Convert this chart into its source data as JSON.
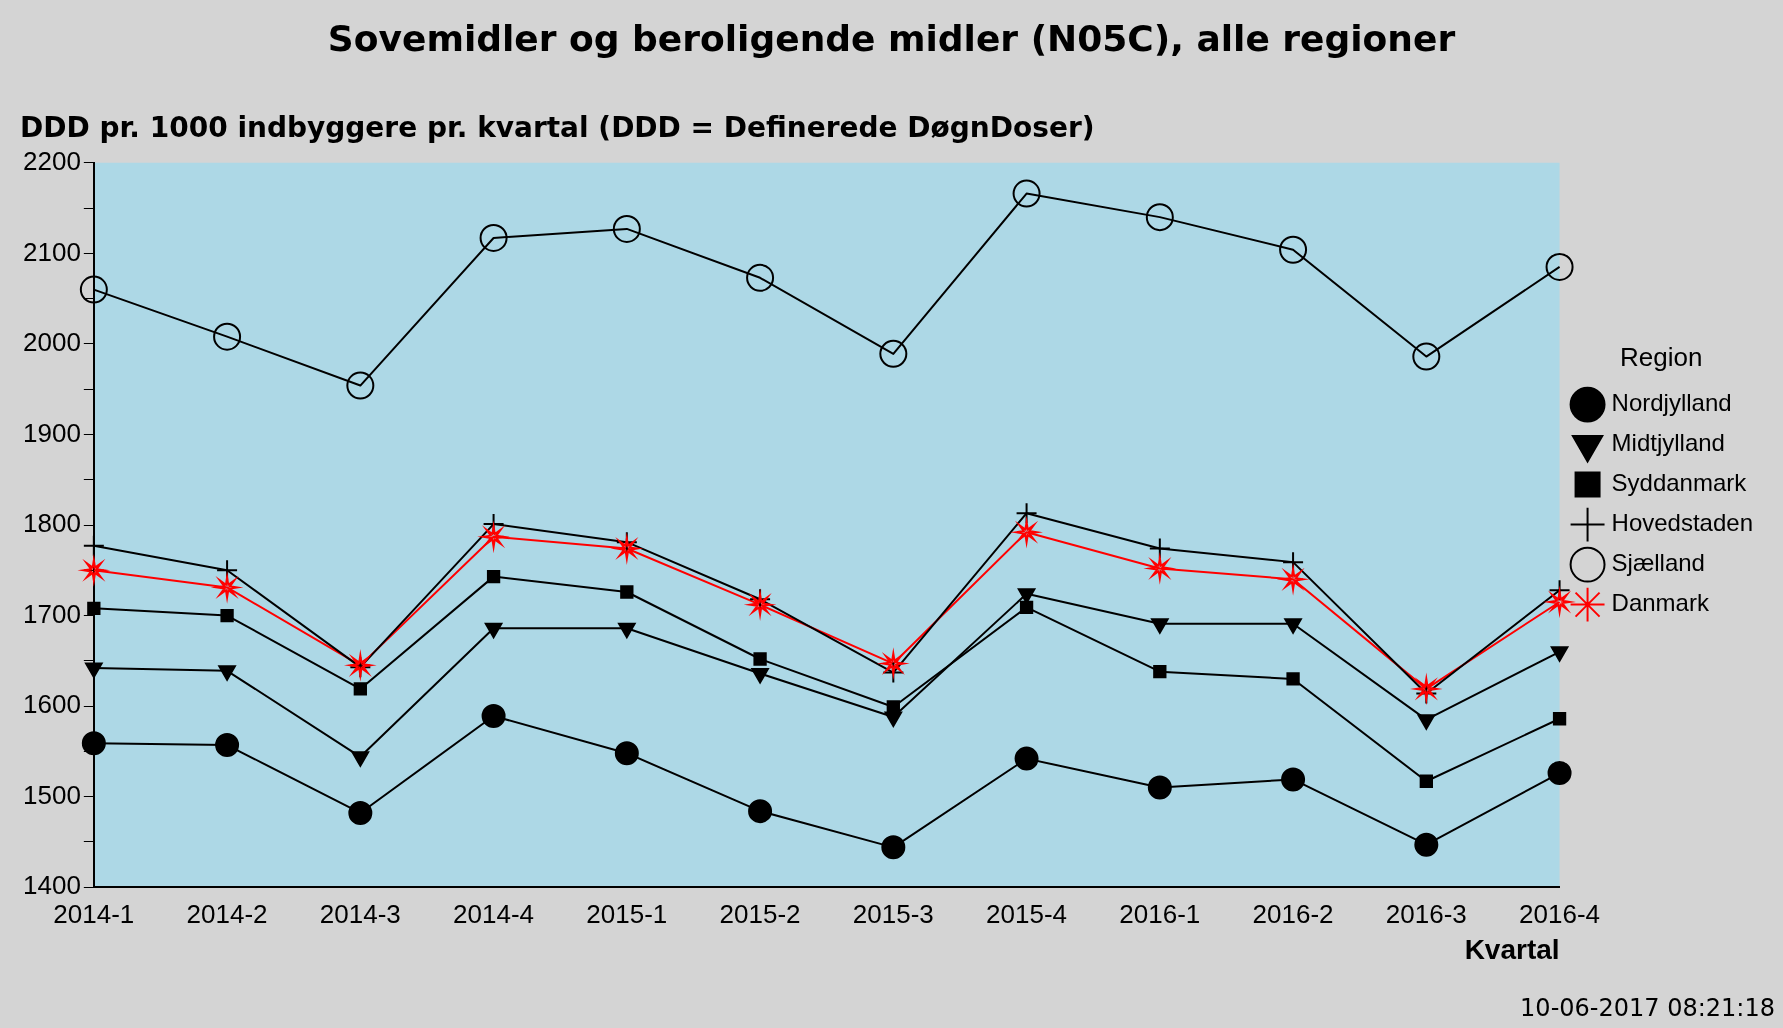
{
  "chart_data": {
    "type": "line",
    "title": "Sovemidler og beroligende midler (N05C), alle regioner",
    "ylabel": "DDD pr. 1000 indbyggere pr. kvartal (DDD = Definerede DøgnDoser)",
    "xlabel": "Kvartal",
    "legend_title": "Region",
    "legend": "right",
    "grid": false,
    "categories": [
      "2014-1",
      "2014-2",
      "2014-3",
      "2014-4",
      "2015-1",
      "2015-2",
      "2015-3",
      "2015-4",
      "2016-1",
      "2016-2",
      "2016-3",
      "2016-4"
    ],
    "ylim": [
      1400,
      2200
    ],
    "yticks": [
      1400,
      {
        "value": 1450,
        "label": null
      },
      1500,
      {
        "value": 1550,
        "label": null
      },
      1600,
      {
        "value": 1650,
        "label": null
      },
      1700,
      {
        "value": 1750,
        "label": null
      },
      1800,
      {
        "value": 1850,
        "label": null
      },
      1900,
      {
        "value": 1950,
        "label": null
      },
      2000,
      {
        "value": 2050,
        "label": null
      },
      2100,
      {
        "value": 2150,
        "label": null
      },
      2200
    ],
    "series": [
      {
        "name": "Nordjylland",
        "color": "#000000",
        "marker": "circle",
        "values": [
          1559,
          1557,
          1482,
          1589,
          1548,
          1484,
          1444,
          1542,
          1510,
          1519,
          1447,
          1526
        ]
      },
      {
        "name": "Midtjylland",
        "color": "#000000",
        "marker": "triangle",
        "values": [
          1642,
          1639,
          1544,
          1686,
          1686,
          1636,
          1588,
          1724,
          1691,
          1691,
          1585,
          1660
        ]
      },
      {
        "name": "Syddanmark",
        "color": "#000000",
        "marker": "square",
        "values": [
          1708,
          1700,
          1619,
          1743,
          1726,
          1652,
          1599,
          1709,
          1638,
          1630,
          1517,
          1586
        ]
      },
      {
        "name": "Hovedstaden",
        "color": "#000000",
        "marker": "cross",
        "values": [
          1777,
          1750,
          1643,
          1801,
          1781,
          1718,
          1637,
          1813,
          1774,
          1759,
          1614,
          1728
        ]
      },
      {
        "name": "Sjælland",
        "color": "#000000",
        "marker": "circle-open",
        "values": [
          2060,
          2008,
          1954,
          2117,
          2127,
          2073,
          1989,
          2166,
          2140,
          2104,
          1986,
          2085
        ]
      },
      {
        "name": "Danmark",
        "color": "#ff0000",
        "marker": "star",
        "values": [
          1750,
          1731,
          1645,
          1787,
          1774,
          1712,
          1647,
          1792,
          1752,
          1740,
          1619,
          1715
        ]
      }
    ],
    "annotations": [
      "10-06-2017 08:21:18"
    ]
  }
}
